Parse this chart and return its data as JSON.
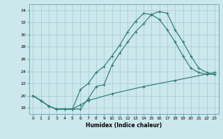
{
  "xlabel": "Humidex (Indice chaleur)",
  "bg_color": "#cce8ed",
  "line_color": "#2d7a72",
  "grid_color": "#aacdd4",
  "xlim": [
    -0.5,
    23.5
  ],
  "ylim": [
    17.0,
    35.0
  ],
  "yticks": [
    18,
    20,
    22,
    24,
    26,
    28,
    30,
    32,
    34
  ],
  "xticks": [
    0,
    1,
    2,
    3,
    4,
    5,
    6,
    7,
    8,
    9,
    10,
    11,
    12,
    13,
    14,
    15,
    16,
    17,
    18,
    19,
    20,
    21,
    22,
    23
  ],
  "line1_x": [
    0,
    1,
    2,
    3,
    4,
    5,
    6,
    7,
    8,
    9,
    10,
    11,
    12,
    13,
    14,
    15,
    16,
    17,
    18,
    19,
    20,
    21,
    22,
    23
  ],
  "line1_y": [
    20.0,
    19.2,
    18.3,
    17.8,
    17.8,
    17.8,
    17.8,
    19.5,
    21.5,
    21.8,
    25.0,
    27.0,
    28.8,
    30.5,
    31.8,
    33.3,
    33.8,
    33.5,
    30.8,
    28.8,
    26.5,
    24.5,
    23.8,
    23.5
  ],
  "line2_x": [
    0,
    1,
    2,
    3,
    4,
    5,
    6,
    7,
    8,
    9,
    10,
    11,
    12,
    13,
    14,
    15,
    16,
    17,
    18,
    19,
    20,
    21,
    22,
    23
  ],
  "line2_y": [
    20.0,
    19.2,
    18.3,
    17.8,
    17.8,
    17.8,
    21.0,
    22.0,
    23.8,
    24.8,
    26.5,
    28.3,
    30.5,
    32.2,
    33.5,
    33.3,
    32.5,
    30.8,
    28.8,
    26.5,
    24.5,
    23.8,
    23.5,
    23.5
  ],
  "line3_x": [
    0,
    1,
    2,
    3,
    4,
    5,
    6,
    7,
    10,
    14,
    18,
    23
  ],
  "line3_y": [
    20.0,
    19.2,
    18.3,
    17.8,
    17.8,
    17.8,
    18.5,
    19.2,
    20.3,
    21.5,
    22.5,
    23.8
  ]
}
